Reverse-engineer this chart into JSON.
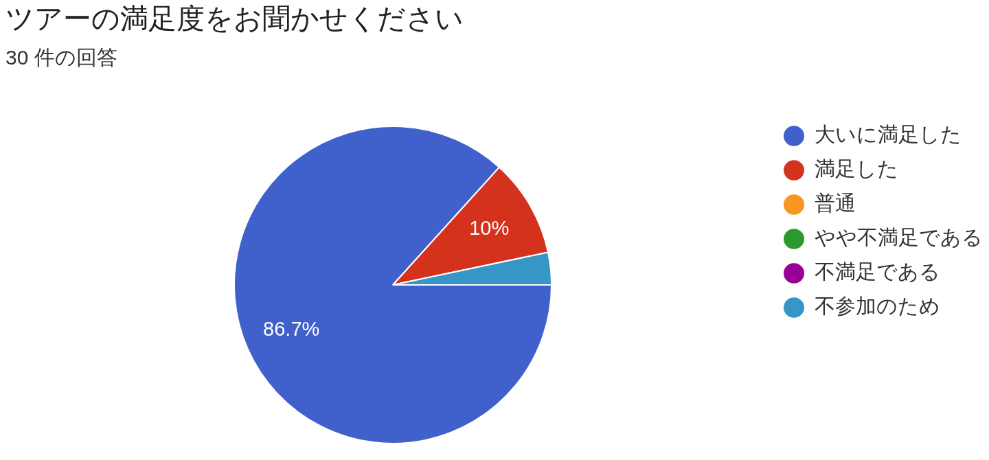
{
  "chart_data": {
    "type": "pie",
    "title": "ツアーの満足度をお聞かせください",
    "subtitle": "30 件の回答",
    "categories": [
      "大いに満足した",
      "満足した",
      "普通",
      "やや不満足である",
      "不満足である",
      "不参加のため"
    ],
    "values": [
      86.7,
      10,
      0,
      0,
      0,
      3.3
    ],
    "colors": [
      "#4061cb",
      "#d5321e",
      "#f9961f",
      "#2a9a2b",
      "#980098",
      "#3697c6"
    ],
    "value_labels": [
      "86.7%",
      "10%",
      null,
      null,
      null,
      null
    ],
    "legend": "top right"
  }
}
